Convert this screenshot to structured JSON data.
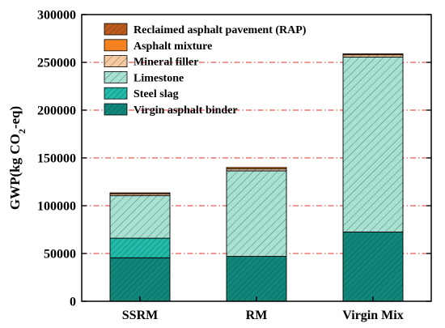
{
  "chart_data": {
    "type": "bar",
    "stacked": true,
    "categories": [
      "SSRM",
      "RM",
      "Virgin Mix"
    ],
    "series": [
      {
        "name": "Virgin asphalt binder",
        "values": [
          45500,
          47000,
          72500
        ],
        "color": "#11867a",
        "hatch": "dense-diagonal"
      },
      {
        "name": "Steel slag",
        "values": [
          20500,
          0,
          0
        ],
        "color": "#22bbaa",
        "hatch": "dense-diagonal"
      },
      {
        "name": "Limestone",
        "values": [
          44500,
          89500,
          183000
        ],
        "color": "#a8e0d2",
        "hatch": "diagonal"
      },
      {
        "name": "Mineral filler",
        "values": [
          1800,
          2000,
          2400
        ],
        "color": "#f7c9a0",
        "hatch": "diagonal"
      },
      {
        "name": "Asphalt mixture",
        "values": [
          1200,
          1500,
          1000
        ],
        "color": "#f58220",
        "hatch": "none"
      },
      {
        "name": "Reclaimed asphalt pavement (RAP)",
        "values": [
          0,
          0,
          0
        ],
        "color": "#c05a1a",
        "hatch": "dense-diagonal"
      }
    ],
    "title": "",
    "xlabel": "",
    "ylabel": {
      "prefix": "GWP(kg CO",
      "sub": "2",
      "suffix": "-eq)"
    },
    "ylim": [
      0,
      300000
    ],
    "yticks": [
      0,
      50000,
      100000,
      150000,
      200000,
      250000,
      300000
    ],
    "grid": {
      "on": true,
      "axis": "y",
      "style": "dash-dot",
      "color": "#e0302a"
    },
    "legend": {
      "placement": "top-left",
      "order": [
        "Reclaimed asphalt pavement (RAP)",
        "Asphalt mixture",
        "Mineral filler",
        "Limestone",
        "Steel slag",
        "Virgin asphalt binder"
      ]
    }
  }
}
